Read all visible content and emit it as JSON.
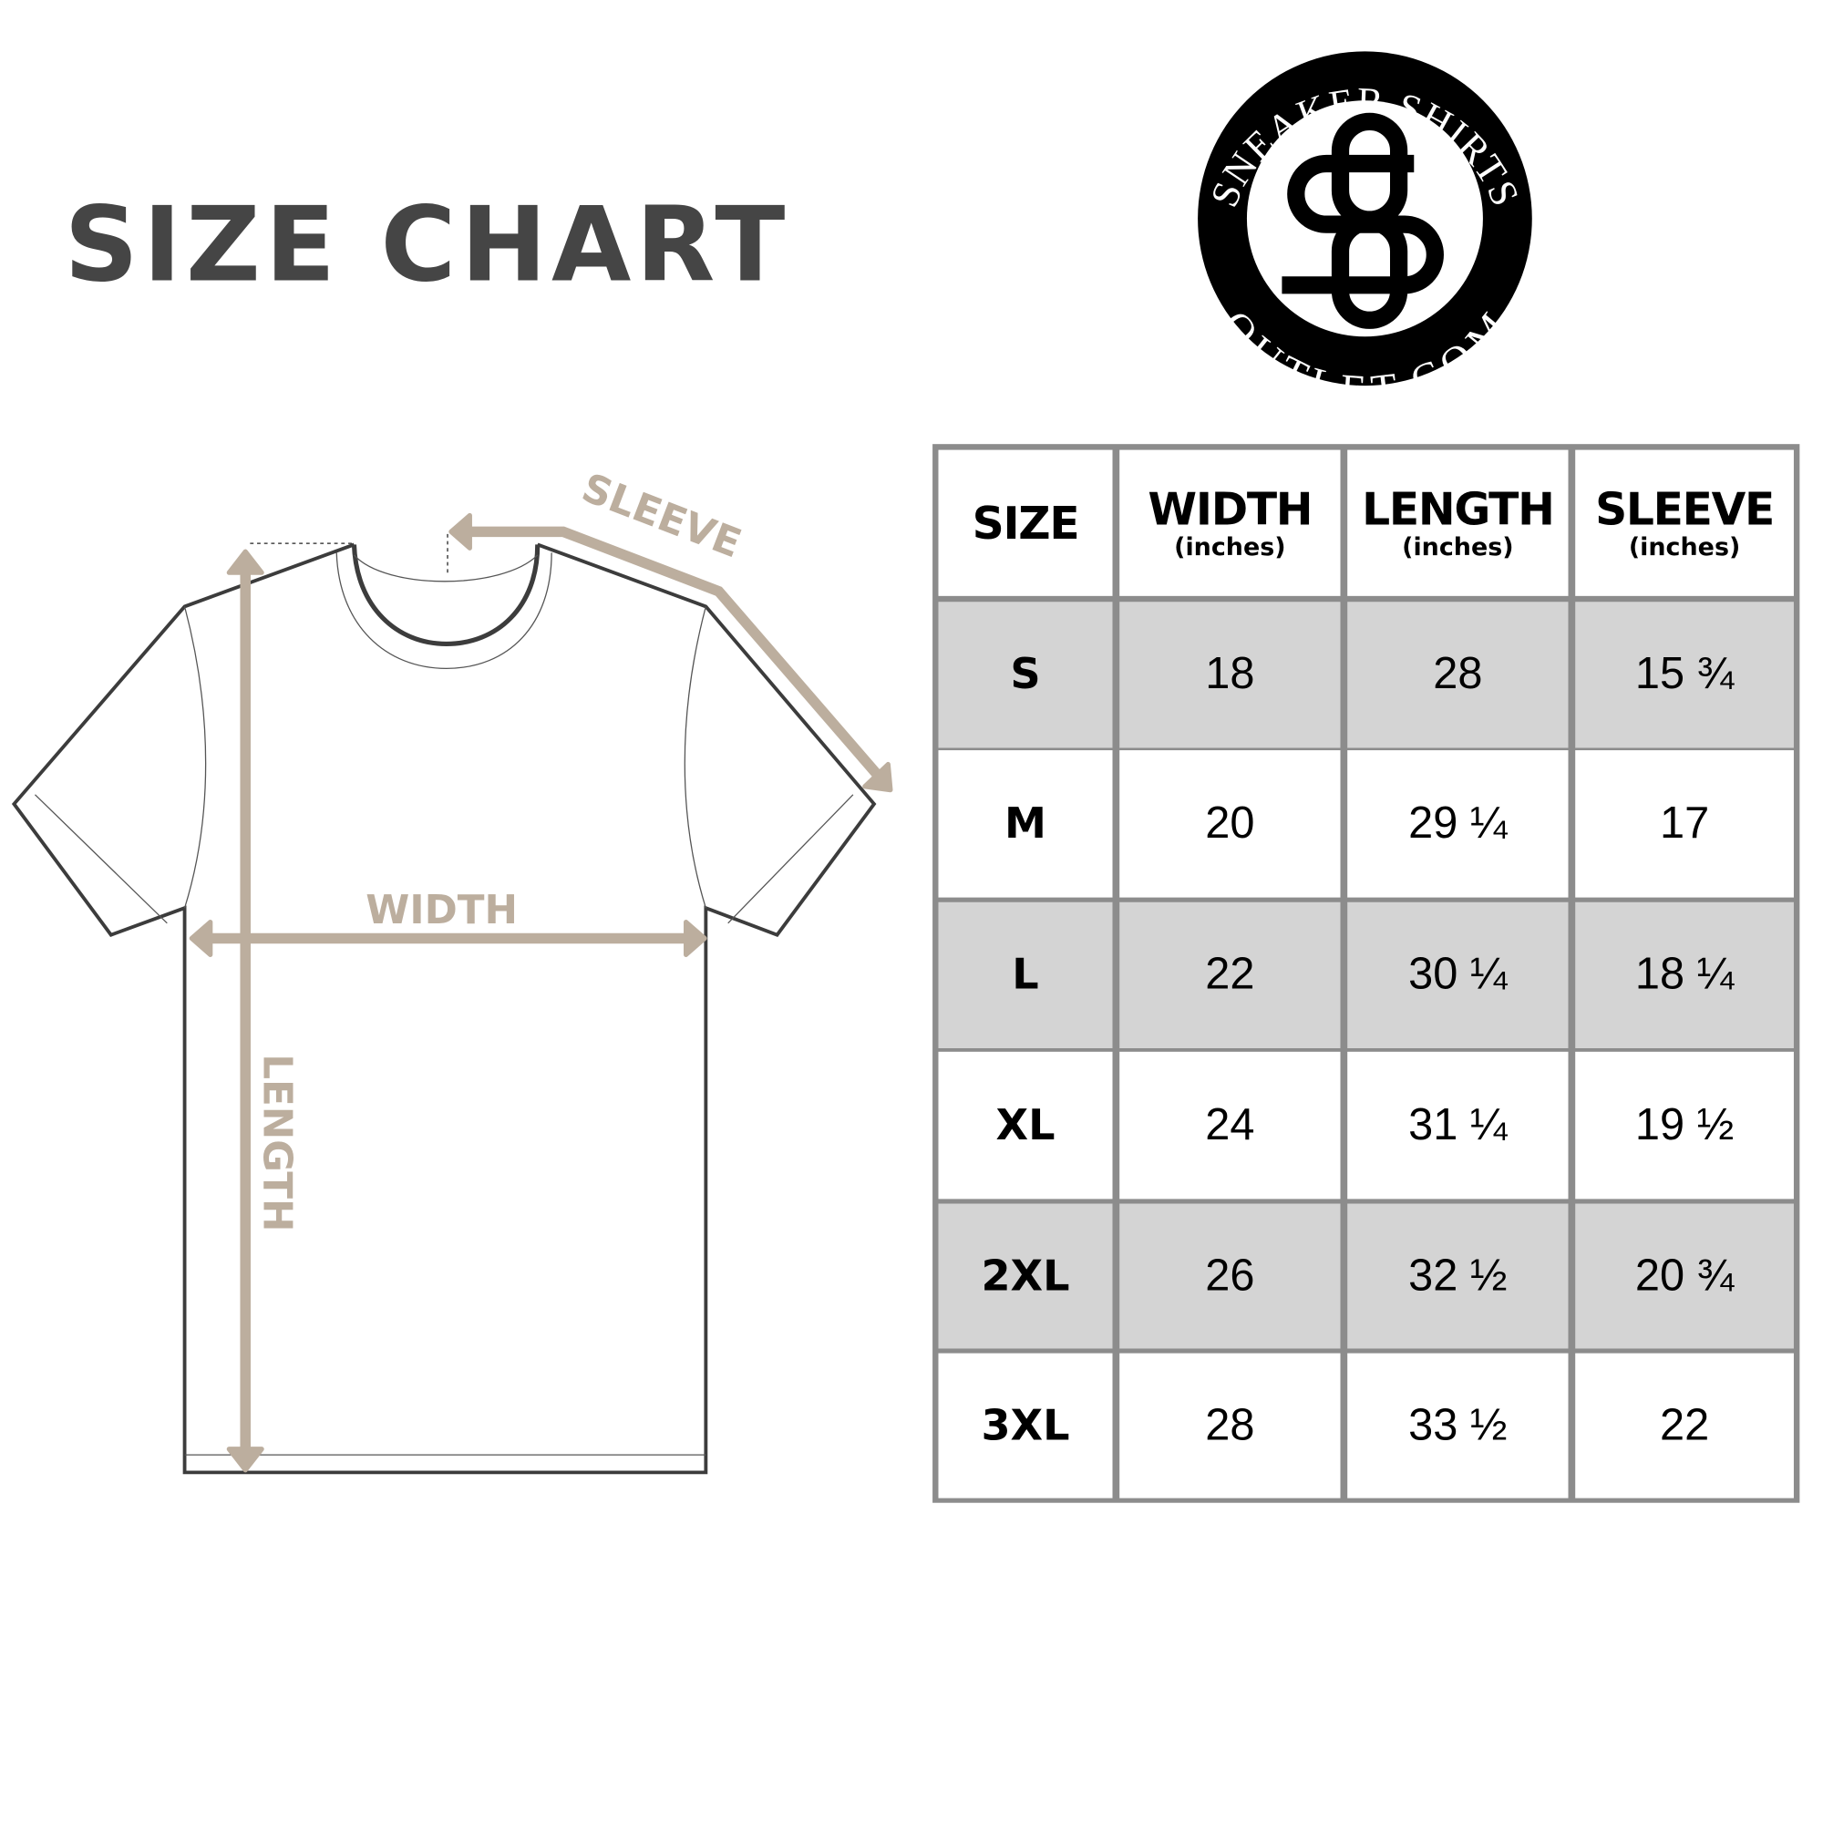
{
  "title": "SIZE CHART",
  "logo": {
    "top_text": "SNEAKER SHIRTS",
    "bottom_text": "OUTLET.COM",
    "monogram": "SO"
  },
  "diagram": {
    "sleeve_label": "SLEEVE",
    "width_label": "WIDTH",
    "length_label": "LENGTH",
    "arrow_color": "#bcae9e"
  },
  "table": {
    "headers": [
      {
        "label": "SIZE",
        "unit": ""
      },
      {
        "label": "WIDTH",
        "unit": "(inches)"
      },
      {
        "label": "LENGTH",
        "unit": "(inches)"
      },
      {
        "label": "SLEEVE",
        "unit": "(inches)"
      }
    ],
    "rows": [
      [
        "S",
        "18",
        "28",
        "15 ¾"
      ],
      [
        "M",
        "20",
        "29 ¼",
        "17"
      ],
      [
        "L",
        "22",
        "30 ¼",
        "18 ¼"
      ],
      [
        "XL",
        "24",
        "31 ¼",
        "19 ½"
      ],
      [
        "2XL",
        "26",
        "32 ½",
        "20 ¾"
      ],
      [
        "3XL",
        "28",
        "33 ½",
        "22"
      ]
    ],
    "stripe_color": "#d4d4d4",
    "border_color": "#8c8c8c"
  }
}
